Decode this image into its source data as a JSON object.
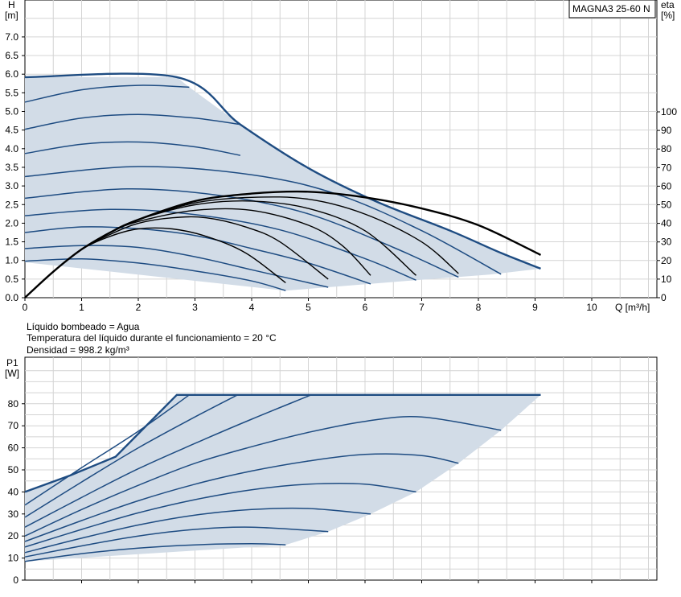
{
  "model_label": "MAGNA3 25-60 N",
  "info_lines": [
    "Líquido bombeado = Agua",
    "Temperatura del líquido durante el funcionamiento = 20 °C",
    "Densidad = 998.2 kg/m³"
  ],
  "colors": {
    "area_fill": "#d2dce7",
    "curve_blue": "#1e4c82",
    "curve_black": "#000000",
    "grid": "#d4d4d4"
  },
  "chart_data": [
    {
      "type": "line",
      "title": "",
      "ylabel_top": "H",
      "ylabel_unit": "[m]",
      "y2label_top": "eta",
      "y2label_unit": "[%]",
      "xlabel": "Q [m³/h]",
      "xlim": [
        0,
        11
      ],
      "ylim": [
        0,
        8
      ],
      "y2lim": [
        0,
        200
      ],
      "x_ticks": [
        "0",
        "1",
        "2",
        "3",
        "4",
        "5",
        "6",
        "7",
        "8",
        "9",
        "10"
      ],
      "y_ticks": [
        "0.0",
        "0.5",
        "1.0",
        "1.5",
        "2.0",
        "2.5",
        "3.0",
        "3.5",
        "4.0",
        "4.5",
        "5.0",
        "5.5",
        "6.0",
        "6.5",
        "7.0"
      ],
      "y2_ticks": [
        "0",
        "10",
        "20",
        "30",
        "40",
        "50",
        "60",
        "70",
        "80",
        "90",
        "100"
      ],
      "grid": true,
      "operating_area": [
        [
          0,
          5.92
        ],
        [
          2.68,
          5.92
        ],
        [
          2.9,
          5.65
        ],
        [
          3.8,
          4.65
        ],
        [
          5,
          3.48
        ],
        [
          6.2,
          2.58
        ],
        [
          7.5,
          1.8
        ],
        [
          8.4,
          1.2
        ],
        [
          9.1,
          0.78
        ],
        [
          8.2,
          0.62
        ],
        [
          6.9,
          0.47
        ],
        [
          5.35,
          0.28
        ],
        [
          4.6,
          0.19
        ],
        [
          0,
          0.95
        ]
      ],
      "head_curves": [
        {
          "x": [
            0,
            1,
            2,
            3,
            4,
            4.6
          ],
          "y": [
            0.98,
            1.04,
            0.93,
            0.72,
            0.45,
            0.19
          ]
        },
        {
          "x": [
            0,
            1,
            2,
            3,
            4,
            5.35
          ],
          "y": [
            1.32,
            1.4,
            1.35,
            1.1,
            0.75,
            0.28
          ]
        },
        {
          "x": [
            0,
            1,
            2,
            3,
            4,
            5,
            6.1
          ],
          "y": [
            1.75,
            1.9,
            1.85,
            1.67,
            1.32,
            0.93,
            0.37
          ]
        },
        {
          "x": [
            0,
            1.5,
            3,
            4.5,
            6,
            6.9
          ],
          "y": [
            2.2,
            2.37,
            2.23,
            1.82,
            1.05,
            0.47
          ]
        },
        {
          "x": [
            0,
            1.8,
            3.5,
            5,
            6.5,
            7.65
          ],
          "y": [
            2.67,
            2.92,
            2.73,
            2.25,
            1.35,
            0.55
          ]
        },
        {
          "x": [
            0,
            2,
            4,
            5.5,
            7,
            8.4
          ],
          "y": [
            3.25,
            3.52,
            3.3,
            2.78,
            1.8,
            0.63
          ]
        },
        {
          "x": [
            0,
            1,
            2,
            3,
            3.8
          ],
          "y": [
            3.87,
            4.12,
            4.18,
            4.05,
            3.82
          ]
        },
        {
          "x": [
            0,
            1,
            2,
            3,
            3.8
          ],
          "y": [
            4.52,
            4.82,
            4.92,
            4.82,
            4.65
          ]
        },
        {
          "x": [
            0,
            1,
            2,
            2.9
          ],
          "y": [
            5.25,
            5.58,
            5.7,
            5.65
          ]
        },
        {
          "x": [
            0,
            2.68,
            3.8,
            5,
            6.2,
            7.5,
            8.4,
            9.1
          ],
          "y": [
            5.92,
            5.92,
            4.65,
            3.48,
            2.58,
            1.8,
            1.2,
            0.78
          ]
        }
      ],
      "efficiency_curves": [
        {
          "x": [
            0,
            0.5,
            1,
            1.5,
            2,
            2.6,
            3.2,
            3.9,
            4.6
          ],
          "y": [
            0,
            14,
            26,
            33,
            37,
            37,
            33,
            24,
            8
          ]
        },
        {
          "x": [
            0,
            0.5,
            1,
            1.5,
            2,
            2.6,
            3.2,
            3.9,
            4.5,
            5.35
          ],
          "y": [
            0,
            14,
            26,
            34,
            40,
            43,
            43,
            38,
            30,
            10
          ]
        },
        {
          "x": [
            0,
            0.5,
            1,
            1.5,
            2,
            3,
            4,
            5,
            5.6,
            6.1
          ],
          "y": [
            0,
            14,
            26,
            35,
            41,
            47,
            47,
            39,
            28,
            12
          ]
        },
        {
          "x": [
            0,
            0.5,
            1,
            1.5,
            2,
            3,
            4,
            5,
            6,
            6.9
          ],
          "y": [
            0,
            14,
            26,
            35,
            42,
            50,
            52,
            48,
            36,
            12
          ]
        },
        {
          "x": [
            0,
            0.5,
            1,
            1.5,
            2,
            3,
            4,
            5,
            6,
            7,
            7.65
          ],
          "y": [
            0,
            14,
            26,
            35,
            42,
            51,
            54,
            53,
            45,
            30,
            13
          ]
        },
        {
          "x": [
            0,
            0.5,
            1,
            1.5,
            2,
            3,
            4,
            5,
            6,
            7,
            8,
            9.1
          ],
          "y": [
            0,
            14,
            26,
            35,
            42,
            52,
            56,
            57,
            54,
            48,
            39,
            23
          ]
        }
      ]
    },
    {
      "type": "line",
      "title": "",
      "ylabel_top": "P1",
      "ylabel_unit": "[W]",
      "xlim": [
        0,
        11
      ],
      "ylim": [
        0,
        90
      ],
      "y_ticks": [
        "0",
        "10",
        "20",
        "30",
        "40",
        "50",
        "60",
        "70",
        "80"
      ],
      "grid": true,
      "operating_area": [
        [
          0,
          40
        ],
        [
          0.8,
          47.5
        ],
        [
          1.6,
          56
        ],
        [
          2.68,
          84
        ],
        [
          9.1,
          84
        ],
        [
          8.4,
          68
        ],
        [
          7.65,
          53
        ],
        [
          6.9,
          40
        ],
        [
          6.1,
          30
        ],
        [
          5.35,
          22
        ],
        [
          4.6,
          16
        ],
        [
          0,
          8.5
        ]
      ],
      "power_curves": [
        {
          "x": [
            0,
            1,
            2,
            3,
            4,
            4.6
          ],
          "y": [
            8.5,
            12,
            14.5,
            16,
            16.5,
            16
          ]
        },
        {
          "x": [
            0,
            1,
            2,
            3,
            4,
            5.35
          ],
          "y": [
            10.5,
            15.5,
            20,
            23,
            24,
            22
          ]
        },
        {
          "x": [
            0,
            1,
            2,
            3,
            4,
            5,
            6.1
          ],
          "y": [
            12.5,
            19,
            25,
            29.5,
            32,
            32.5,
            30
          ]
        },
        {
          "x": [
            0,
            1,
            2,
            3,
            4,
            5,
            6,
            6.9
          ],
          "y": [
            15,
            23,
            30.5,
            36.5,
            41,
            43.5,
            43.5,
            40
          ]
        },
        {
          "x": [
            0,
            1,
            2,
            3,
            4,
            5,
            6,
            7,
            7.65
          ],
          "y": [
            17.5,
            27,
            36,
            43.5,
            49.5,
            54,
            57,
            56.5,
            53
          ]
        },
        {
          "x": [
            0,
            1,
            2,
            3,
            4,
            5,
            6,
            7,
            8.4
          ],
          "y": [
            20,
            32,
            43,
            53,
            60.5,
            67,
            72,
            74,
            68
          ]
        },
        {
          "x": [
            0,
            1,
            2,
            3,
            4,
            5.05
          ],
          "y": [
            24,
            37.5,
            50.5,
            62,
            73,
            84
          ]
        },
        {
          "x": [
            0,
            1,
            2,
            3,
            3.75
          ],
          "y": [
            28.5,
            44.5,
            60,
            74,
            84
          ]
        },
        {
          "x": [
            0,
            1,
            2,
            2.9
          ],
          "y": [
            34,
            51,
            67.5,
            84
          ]
        },
        {
          "x": [
            0,
            0.8,
            1.6,
            2.68,
            9.1
          ],
          "y": [
            40,
            47.5,
            56,
            84,
            84
          ]
        }
      ]
    }
  ]
}
